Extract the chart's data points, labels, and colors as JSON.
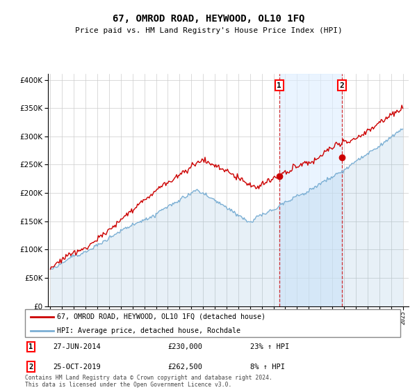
{
  "title": "67, OMROD ROAD, HEYWOOD, OL10 1FQ",
  "subtitle": "Price paid vs. HM Land Registry's House Price Index (HPI)",
  "ylim": [
    0,
    410000
  ],
  "yticks": [
    0,
    50000,
    100000,
    150000,
    200000,
    250000,
    300000,
    350000,
    400000
  ],
  "sale1_date": 2014.49,
  "sale1_price": 230000,
  "sale2_date": 2019.81,
  "sale2_price": 262500,
  "property_color": "#cc0000",
  "hpi_color": "#7bafd4",
  "hpi_fill_color": "#ddeeff",
  "legend_property_label": "67, OMROD ROAD, HEYWOOD, OL10 1FQ (detached house)",
  "legend_hpi_label": "HPI: Average price, detached house, Rochdale",
  "annotation1_date": "27-JUN-2014",
  "annotation1_price": "£230,000",
  "annotation1_hpi": "23% ↑ HPI",
  "annotation2_date": "25-OCT-2019",
  "annotation2_price": "£262,500",
  "annotation2_hpi": "8% ↑ HPI",
  "footnote": "Contains HM Land Registry data © Crown copyright and database right 2024.\nThis data is licensed under the Open Government Licence v3.0.",
  "background_color": "#ffffff",
  "grid_color": "#cccccc"
}
